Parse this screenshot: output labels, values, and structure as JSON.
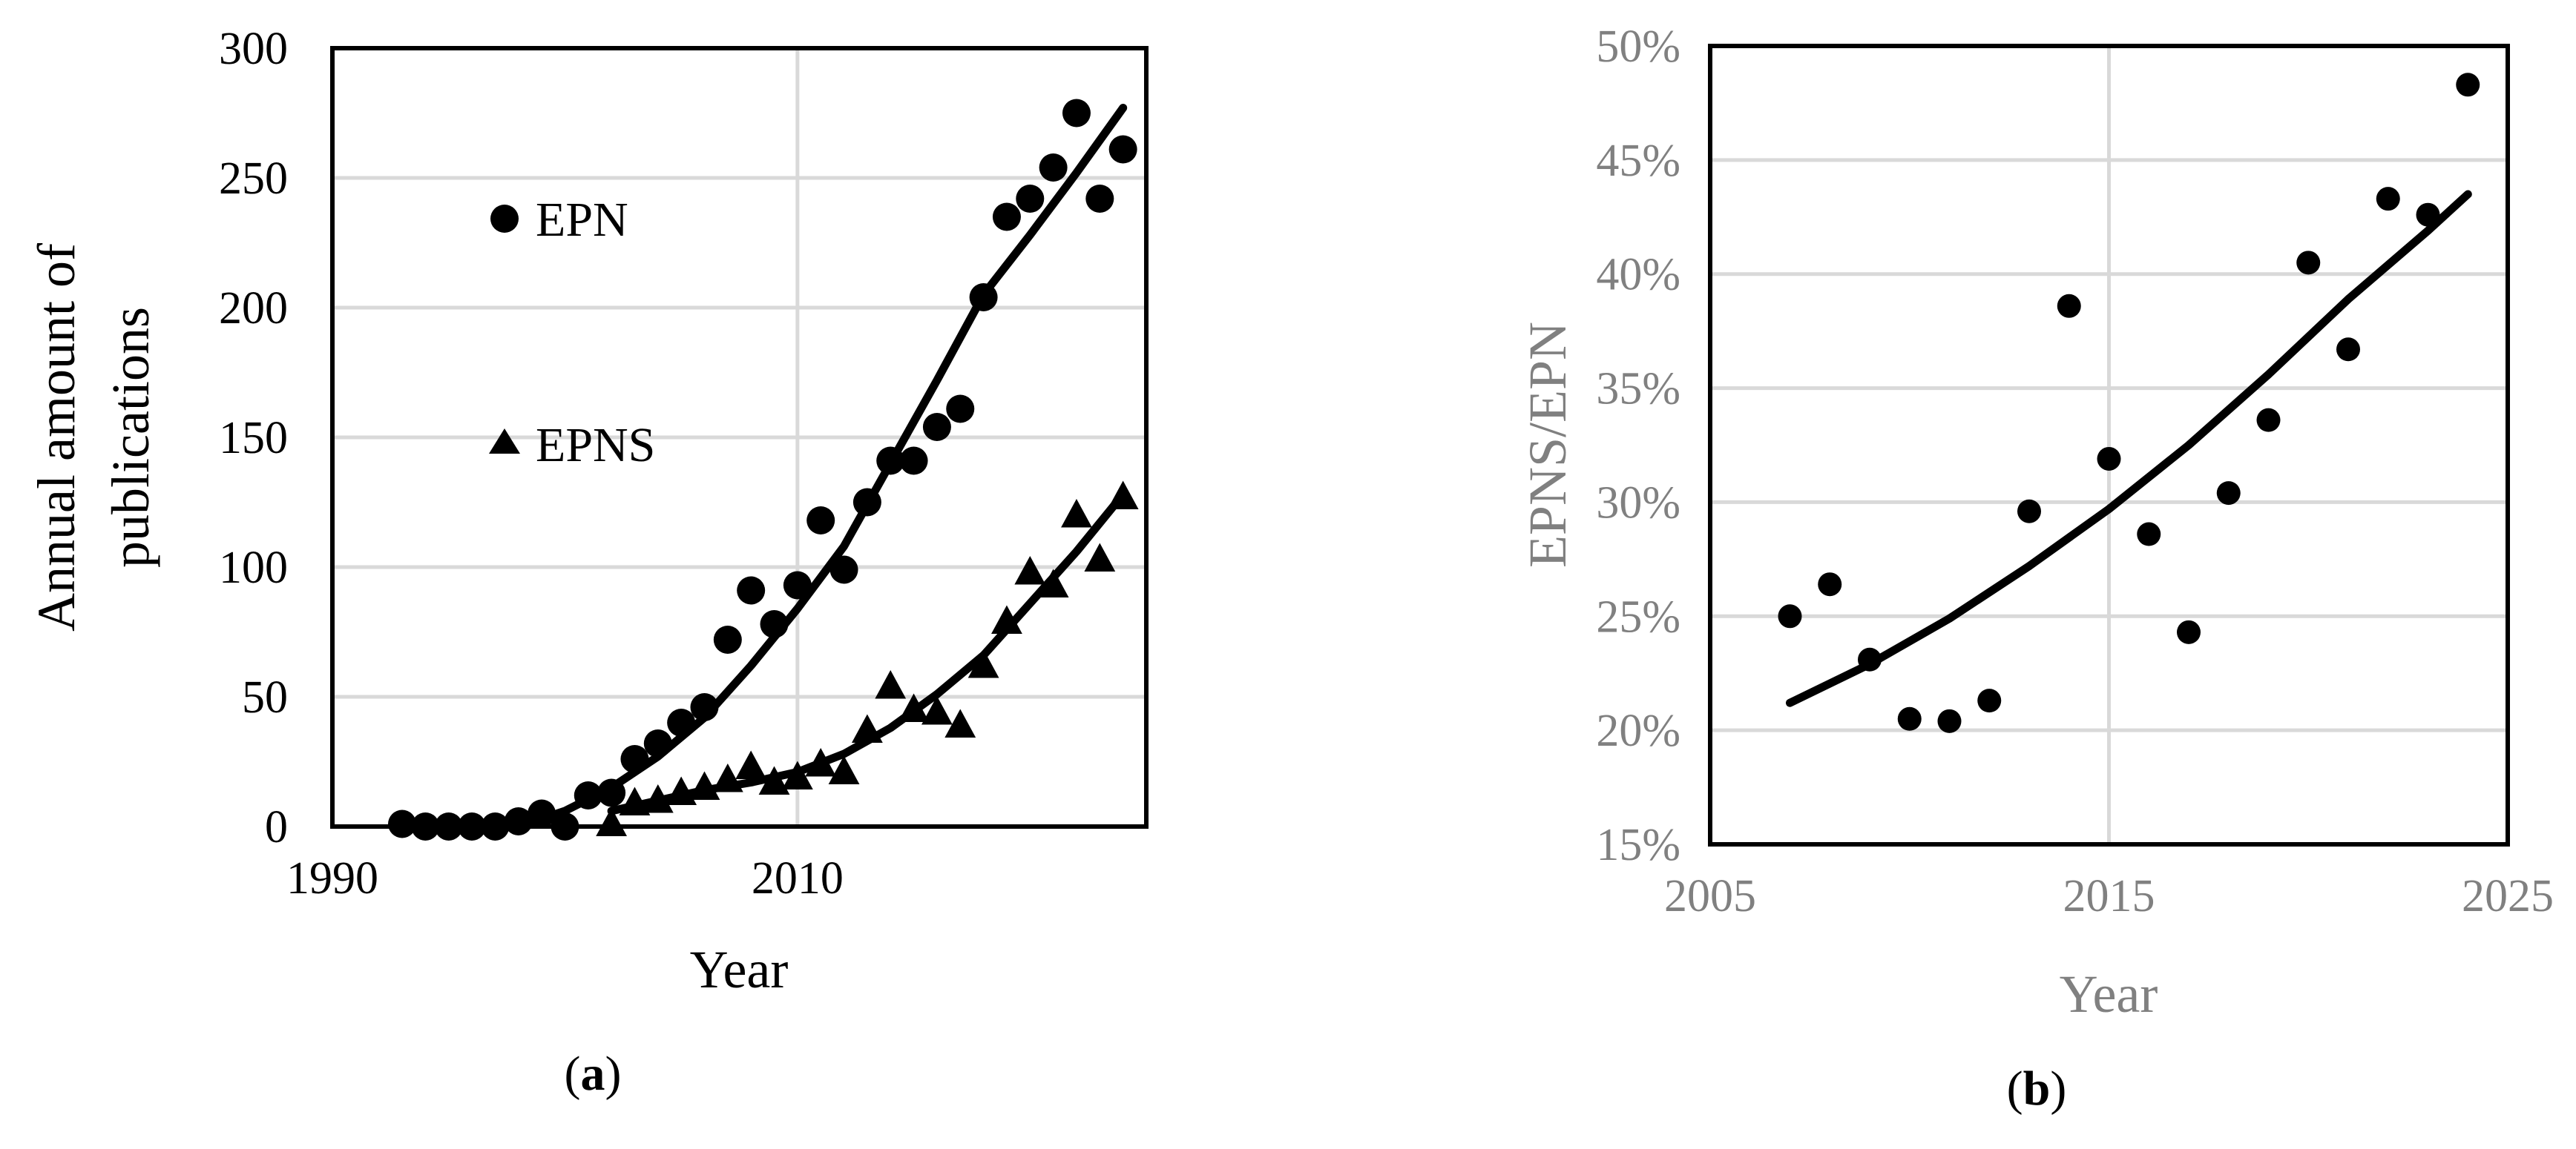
{
  "colors": {
    "ink": "#000000",
    "grid": "#d9d9d9",
    "grey_text": "#808080"
  },
  "chart_data": [
    {
      "type": "scatter",
      "panel_label": "(a)",
      "panel_label_parts": {
        "open": "(",
        "letter": "a",
        "close": ")"
      },
      "xlabel": "Year",
      "ylabel_lines": [
        "Annual amount of",
        "publications"
      ],
      "xlim": [
        1990,
        2025
      ],
      "ylim": [
        0,
        300
      ],
      "x_ticks": [
        "1990",
        "2010"
      ],
      "x_tick_values": [
        1990,
        2010
      ],
      "y_ticks": [
        "0",
        "50",
        "100",
        "150",
        "200",
        "250",
        "300"
      ],
      "y_tick_values": [
        0,
        50,
        100,
        150,
        200,
        250,
        300
      ],
      "grid": "both",
      "legend_position": "upper-left",
      "series": [
        {
          "name": "EPN",
          "marker": "circle",
          "x": [
            1993,
            1994,
            1995,
            1996,
            1997,
            1998,
            1999,
            2000,
            2001,
            2002,
            2003,
            2004,
            2005,
            2006,
            2007,
            2008,
            2009,
            2010,
            2011,
            2012,
            2013,
            2014,
            2015,
            2016,
            2017,
            2018,
            2019,
            2020,
            2021,
            2022,
            2023,
            2024
          ],
          "y": [
            1,
            0,
            0,
            0,
            0,
            2,
            5,
            0,
            12,
            13,
            26,
            32,
            40,
            46,
            72,
            91,
            78,
            93,
            118,
            99,
            125,
            141,
            141,
            154,
            161,
            204,
            235,
            242,
            254,
            275,
            242,
            261
          ]
        },
        {
          "name": "EPNS",
          "marker": "triangle",
          "x": [
            2002,
            2003,
            2004,
            2005,
            2006,
            2007,
            2008,
            2009,
            2010,
            2011,
            2012,
            2013,
            2014,
            2015,
            2016,
            2017,
            2018,
            2019,
            2020,
            2021,
            2022,
            2023,
            2024
          ],
          "y": [
            1,
            9,
            10,
            13,
            15,
            18,
            23,
            17,
            19,
            24,
            21,
            37,
            54,
            45,
            44,
            39,
            62,
            79,
            98,
            93,
            120,
            103,
            127
          ]
        }
      ],
      "trendlines": [
        {
          "x": [
            1998,
            2000,
            2002,
            2004,
            2006,
            2008,
            2010,
            2012,
            2014,
            2016,
            2018,
            2020,
            2022,
            2024
          ],
          "y": [
            0,
            6,
            15,
            27,
            42,
            62,
            84,
            108,
            140,
            172,
            205,
            228,
            252,
            277
          ]
        },
        {
          "x": [
            2002,
            2004,
            2006,
            2008,
            2010,
            2012,
            2014,
            2016,
            2018,
            2020,
            2022,
            2024
          ],
          "y": [
            6,
            10,
            14,
            17,
            21,
            28,
            38,
            51,
            66,
            86,
            106,
            128
          ]
        }
      ]
    },
    {
      "type": "scatter",
      "panel_label": "(b)",
      "panel_label_parts": {
        "open": "(",
        "letter": "b",
        "close": ")"
      },
      "xlabel": "Year",
      "ylabel": "EPNS/EPN",
      "xlim": [
        2005,
        2025
      ],
      "ylim": [
        15,
        50
      ],
      "x_ticks": [
        "2005",
        "2015",
        "2025"
      ],
      "x_tick_values": [
        2005,
        2015,
        2025
      ],
      "y_ticks": [
        "15%",
        "20%",
        "25%",
        "30%",
        "35%",
        "40%",
        "45%",
        "50%"
      ],
      "y_tick_values": [
        15,
        20,
        25,
        30,
        35,
        40,
        45,
        50
      ],
      "grid": "both",
      "series": [
        {
          "marker": "circle",
          "x": [
            2007,
            2008,
            2009,
            2010,
            2011,
            2012,
            2013,
            2014,
            2015,
            2016,
            2017,
            2018,
            2019,
            2020,
            2021,
            2022,
            2023,
            2024
          ],
          "y": [
            25.0,
            26.4,
            23.1,
            20.5,
            20.4,
            21.3,
            29.6,
            38.6,
            31.9,
            28.6,
            24.3,
            30.4,
            33.6,
            40.5,
            36.7,
            43.3,
            42.6,
            48.3
          ]
        }
      ],
      "trendlines": [
        {
          "x": [
            2007,
            2009,
            2011,
            2013,
            2015,
            2017,
            2019,
            2021,
            2023,
            2024
          ],
          "y": [
            21.2,
            22.9,
            24.9,
            27.2,
            29.7,
            32.5,
            35.6,
            38.9,
            41.9,
            43.5
          ]
        }
      ]
    }
  ]
}
